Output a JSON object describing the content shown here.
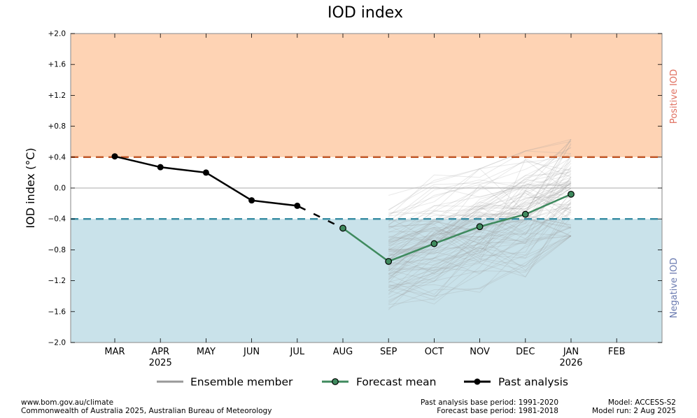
{
  "chart_data": {
    "type": "line",
    "title": "IOD index",
    "ylabel": "IOD index (°C)",
    "ylim": [
      -2.0,
      2.0
    ],
    "yticks": [
      {
        "v": 2.0,
        "label": "+2.0"
      },
      {
        "v": 1.6,
        "label": "+1.6"
      },
      {
        "v": 1.2,
        "label": "+1.2"
      },
      {
        "v": 0.8,
        "label": "+0.8"
      },
      {
        "v": 0.4,
        "label": "+0.4"
      },
      {
        "v": 0.0,
        "label": "0.0"
      },
      {
        "v": -0.4,
        "label": "−0.4"
      },
      {
        "v": -0.8,
        "label": "−0.8"
      },
      {
        "v": -1.2,
        "label": "−1.2"
      },
      {
        "v": -1.6,
        "label": "−1.6"
      },
      {
        "v": -2.0,
        "label": "−2.0"
      }
    ],
    "months": [
      {
        "label": "MAR",
        "year": ""
      },
      {
        "label": "APR",
        "year": "2025"
      },
      {
        "label": "MAY",
        "year": ""
      },
      {
        "label": "JUN",
        "year": ""
      },
      {
        "label": "JUL",
        "year": ""
      },
      {
        "label": "AUG",
        "year": ""
      },
      {
        "label": "SEP",
        "year": ""
      },
      {
        "label": "OCT",
        "year": ""
      },
      {
        "label": "NOV",
        "year": ""
      },
      {
        "label": "DEC",
        "year": ""
      },
      {
        "label": "JAN",
        "year": "2026"
      },
      {
        "label": "FEB",
        "year": ""
      }
    ],
    "thresholds": {
      "positive": 0.4,
      "negative": -0.4
    },
    "regions": {
      "positive_label": "Positive IOD",
      "negative_label": "Negative IOD"
    },
    "series": [
      {
        "name": "Past analysis",
        "x": [
          "MAR",
          "APR",
          "MAY",
          "JUN",
          "JUL"
        ],
        "values": [
          0.41,
          0.27,
          0.2,
          -0.16,
          -0.23
        ],
        "color": "#000000"
      },
      {
        "name": "Forecast mean",
        "x": [
          "AUG",
          "SEP",
          "OCT",
          "NOV",
          "DEC",
          "JAN"
        ],
        "values": [
          -0.52,
          -0.95,
          -0.72,
          -0.5,
          -0.34,
          -0.08
        ],
        "color": "#3f8a5e"
      }
    ],
    "ensemble_members_count": 100,
    "ensemble_spread": {
      "x": [
        "SEP",
        "OCT",
        "NOV",
        "DEC",
        "JAN"
      ],
      "min": [
        -1.6,
        -1.75,
        -1.35,
        -1.15,
        -0.62
      ],
      "max": [
        -0.05,
        0.3,
        0.25,
        0.48,
        0.63
      ]
    },
    "legend": [
      "Ensemble member",
      "Forecast mean",
      "Past analysis"
    ],
    "legend_placement": "bottom",
    "grid": false,
    "colors": {
      "positive_region": "#fed3b4",
      "negative_region": "#c9e2ea",
      "positive_line": "#c0582a",
      "negative_line": "#3a8ea4",
      "positive_text": "#e07060",
      "negative_text": "#6a7ab0",
      "ensemble": "#999999",
      "forecast_marker": "#3f8a5e"
    }
  },
  "footer": {
    "url": "www.bom.gov.au/climate",
    "copyright": "Commonwealth of Australia 2025, Australian Bureau of Meteorology",
    "past_base": "Past analysis base period: 1991-2020",
    "forecast_base": "Forecast base period: 1981-2018",
    "model": "Model: ACCESS-S2",
    "model_run": "Model run: 2 Aug 2025"
  }
}
